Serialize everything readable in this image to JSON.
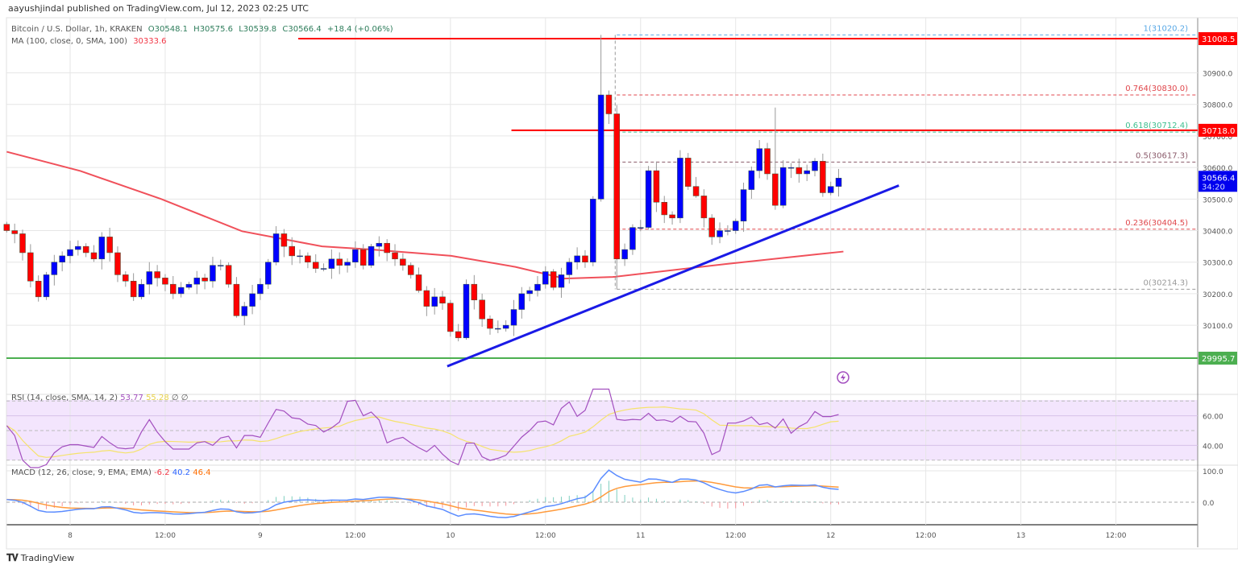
{
  "publisher": "aayushjindal published on TradingView.com, Jul 12, 2023 02:25 UTC",
  "legend": {
    "symbol": "Bitcoin / U.S. Dollar, 1h, KRAKEN",
    "o": "O30548.1",
    "h": "H30575.6",
    "l": "L30539.8",
    "c": "C30566.4",
    "chg": "+18.4 (+0.06%)",
    "ma_label": "MA (100, close, 0, SMA, 100)",
    "ma_value": "30333.6"
  },
  "rsi_legend": {
    "label": "RSI (14, close, SMA, 14, 2)",
    "rsi": "53.77",
    "sma": "55.28",
    "x1": "∅",
    "x2": "∅"
  },
  "macd_legend": {
    "label": "MACD (12, 26, close, 9, EMA, EMA)",
    "hist": "-6.2",
    "macd": "40.2",
    "signal": "46.4"
  },
  "logo": "TradingView",
  "colors": {
    "up": "#0000ff",
    "down": "#ff0000",
    "ma": "#f0505a",
    "trend": "#1a1ae6",
    "support": "#4caf50",
    "rsi": "#a34fbf",
    "rsi_sma": "#f5e36b",
    "macd": "#5b8cff",
    "signal": "#ff9a3c"
  },
  "chart_data": {
    "type": "candlestick",
    "title": "Bitcoin / U.S. Dollar, 1h, KRAKEN",
    "first_open": 30420,
    "closes": [
      30400,
      30390,
      30330,
      30240,
      30190,
      30260,
      30300,
      30320,
      30340,
      30350,
      30330,
      30310,
      30380,
      30330,
      30260,
      30240,
      30190,
      30230,
      30270,
      30250,
      30230,
      30200,
      30220,
      30230,
      30250,
      30240,
      30290,
      30290,
      30230,
      30130,
      30160,
      30200,
      30230,
      30300,
      30390,
      30350,
      30320,
      30320,
      30300,
      30280,
      30280,
      30310,
      30290,
      30300,
      30340,
      30290,
      30350,
      30360,
      30330,
      30310,
      30290,
      30260,
      30210,
      30160,
      30190,
      30170,
      30080,
      30060,
      30230,
      30180,
      30120,
      30090,
      30090,
      30100,
      30150,
      30200,
      30210,
      30230,
      30270,
      30220,
      30260,
      30300,
      30320,
      30300,
      30500,
      30830,
      30770,
      30310,
      30340,
      30410,
      30410,
      30590,
      30490,
      30450,
      30440,
      30630,
      30540,
      30510,
      30440,
      30380,
      30400,
      30400,
      30430,
      30530,
      30590,
      30660,
      30580,
      30480,
      30600,
      30600,
      30580,
      30590,
      30620,
      30520,
      30540,
      30566.4
    ],
    "wick_overrides": {
      "75": {
        "h": 31020.2
      },
      "77": {
        "l": 30214.3
      },
      "97": {
        "h": 30790
      }
    },
    "ma100": [
      [
        0,
        30650
      ],
      [
        9.3,
        30589
      ],
      [
        19.5,
        30500
      ],
      [
        29.7,
        30398
      ],
      [
        39.8,
        30350
      ],
      [
        46,
        30340
      ],
      [
        56.1,
        30320
      ],
      [
        64.2,
        30285
      ],
      [
        70.4,
        30248
      ],
      [
        76.5,
        30253
      ],
      [
        90.7,
        30294
      ],
      [
        105.6,
        30333.6
      ]
    ],
    "trendline": [
      [
        55.6,
        29970
      ],
      [
        112.6,
        30543
      ]
    ],
    "price_axis": {
      "ticks": [
        "30900.0",
        "30800.0",
        "30700.0",
        "30600.0",
        "30500.0",
        "30400.0",
        "30300.0",
        "30200.0",
        "30100.0"
      ],
      "tick_values": [
        30900,
        30800,
        30700,
        30600,
        30500,
        30400,
        30300,
        30200,
        30100
      ]
    },
    "horizontal_lines": [
      {
        "price": 31008.5,
        "label": "31008.5",
        "color": "#ff0000",
        "start_index": 36.8
      },
      {
        "price": 30718.0,
        "label": "30718.0",
        "color": "#ff0000",
        "start_index": 63.7
      },
      {
        "price": 29995.7,
        "label": "29995.7",
        "color": "#4caf50",
        "start_index": -1
      }
    ],
    "current_price": {
      "label": "30566.4",
      "countdown": "34:20",
      "value": 30566.4
    },
    "fib": {
      "start_index": 77,
      "levels": [
        {
          "label": "1(31020.2)",
          "price": 31020.2,
          "color": "#5aa9e6"
        },
        {
          "label": "0.764(30830.0)",
          "price": 30830.0,
          "color": "#e0474c"
        },
        {
          "label": "0.618(30712.4)",
          "price": 30712.4,
          "color": "#3dbf8f"
        },
        {
          "label": "0.5(30617.3)",
          "price": 30617.3,
          "color": "#8a5a6a"
        },
        {
          "label": "0.236(30404.5)",
          "price": 30404.5,
          "color": "#e0474c"
        },
        {
          "label": "0(30214.3)",
          "price": 30214.3,
          "color": "#999999"
        }
      ]
    },
    "time_axis": {
      "labels": [
        "8",
        "12:00",
        "9",
        "12:00",
        "10",
        "12:00",
        "11",
        "12:00",
        "12",
        "12:00",
        "13",
        "12:00"
      ],
      "hours_from_day8": [
        0,
        12,
        24,
        36,
        48,
        60,
        72,
        84,
        96,
        108,
        120,
        132
      ]
    },
    "rsi_axis": {
      "ticks": [
        "60.00",
        "40.00"
      ],
      "values": [
        60,
        40
      ],
      "band": [
        30,
        70
      ]
    },
    "macd_axis": {
      "ticks": [
        "100.0",
        "0.0"
      ],
      "values": [
        100,
        0
      ]
    }
  }
}
